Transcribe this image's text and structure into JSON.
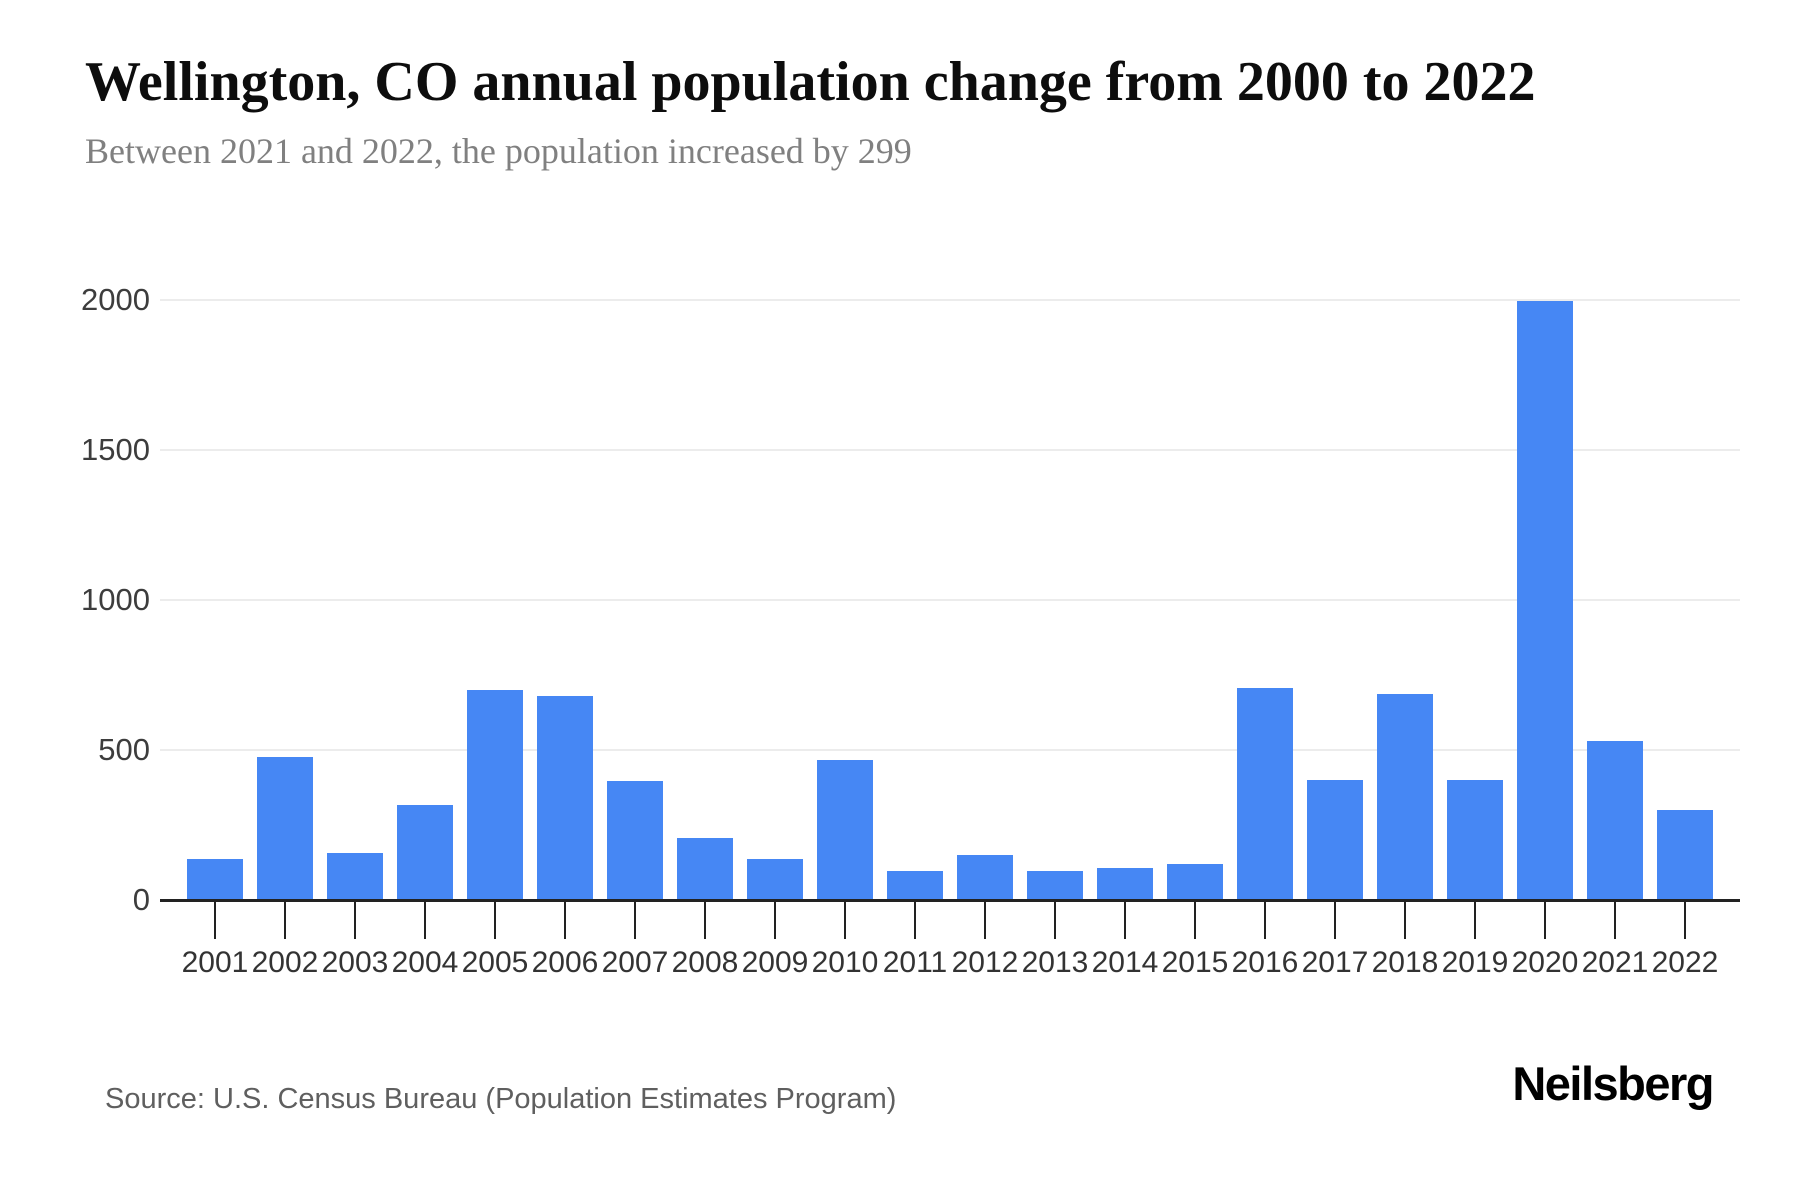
{
  "chart_data": {
    "type": "bar",
    "title": "Wellington, CO annual population change from 2000 to 2022",
    "subtitle": "Between 2021 and 2022, the population increased by 299",
    "categories": [
      "2001",
      "2002",
      "2003",
      "2004",
      "2005",
      "2006",
      "2007",
      "2008",
      "2009",
      "2010",
      "2011",
      "2012",
      "2013",
      "2014",
      "2015",
      "2016",
      "2017",
      "2018",
      "2019",
      "2020",
      "2021",
      "2022"
    ],
    "values": [
      135,
      475,
      155,
      315,
      700,
      680,
      395,
      205,
      135,
      465,
      95,
      150,
      95,
      105,
      120,
      705,
      400,
      685,
      400,
      1998,
      530,
      299
    ],
    "xlabel": "",
    "ylabel": "",
    "ylim": [
      0,
      2000
    ],
    "yticks": [
      0,
      500,
      1000,
      1500,
      2000
    ],
    "grid": true,
    "legend": false,
    "bar_color": "#4687F4",
    "colors": {
      "grid": "#ececec",
      "axis": "#222222",
      "y_label": "#3d3d3d",
      "x_label": "#333333",
      "title": "#0d0d0d",
      "subtitle": "#808080",
      "source": "#5f5f5f",
      "brand": "#000000"
    }
  },
  "footer": {
    "source": "Source: U.S. Census Bureau (Population Estimates Program)",
    "brand": "Neilsberg"
  }
}
